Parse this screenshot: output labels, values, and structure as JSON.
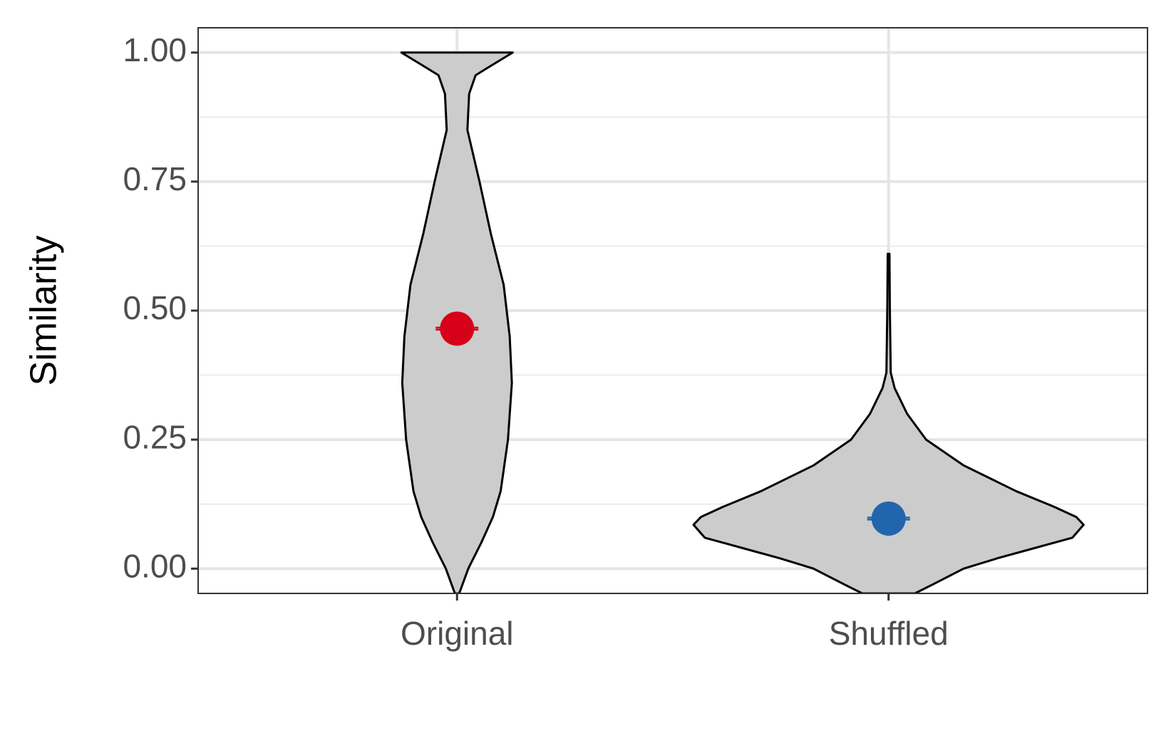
{
  "chart_data": {
    "type": "violin",
    "y_label": "Similarity",
    "categories": [
      "Original",
      "Shuffled"
    ],
    "xlim": [
      0.4,
      2.6
    ],
    "ylim": [
      -0.048,
      1.048
    ],
    "yticks": [
      {
        "value": 0,
        "label": "0.00"
      },
      0.25,
      {
        "value": 0.5,
        "label": "0.50"
      },
      0.75,
      {
        "value": 1,
        "label": "1.00"
      }
    ],
    "minor_yticks": [
      0.125,
      0.375,
      0.625,
      0.875
    ],
    "grid": true,
    "violin_color": "#cccccc",
    "violins": [
      {
        "y": [
          1.0,
          0.97,
          0.956,
          0.92,
          0.85,
          0.75,
          0.65,
          0.55,
          0.45,
          0.36,
          0.25,
          0.15,
          0.1,
          0.05,
          0.0,
          -0.048
        ],
        "width": [
          0.129,
          0.07,
          0.043,
          0.028,
          0.024,
          0.052,
          0.078,
          0.108,
          0.122,
          0.127,
          0.118,
          0.101,
          0.083,
          0.056,
          0.026,
          0.005
        ]
      },
      {
        "y": [
          0.61,
          0.5,
          0.38,
          0.35,
          0.3,
          0.25,
          0.2,
          0.15,
          0.12,
          0.1,
          0.085,
          0.06,
          0.04,
          0.02,
          0.0,
          -0.03,
          -0.048
        ],
        "width": [
          0.002,
          0.003,
          0.005,
          0.014,
          0.043,
          0.087,
          0.174,
          0.296,
          0.383,
          0.435,
          0.452,
          0.426,
          0.339,
          0.252,
          0.174,
          0.104,
          0.061
        ]
      }
    ],
    "means": [
      0.465,
      0.097
    ],
    "errors": [
      0.002,
      0.002
    ],
    "colors": [
      "#d7001a",
      "#2166ac"
    ]
  }
}
